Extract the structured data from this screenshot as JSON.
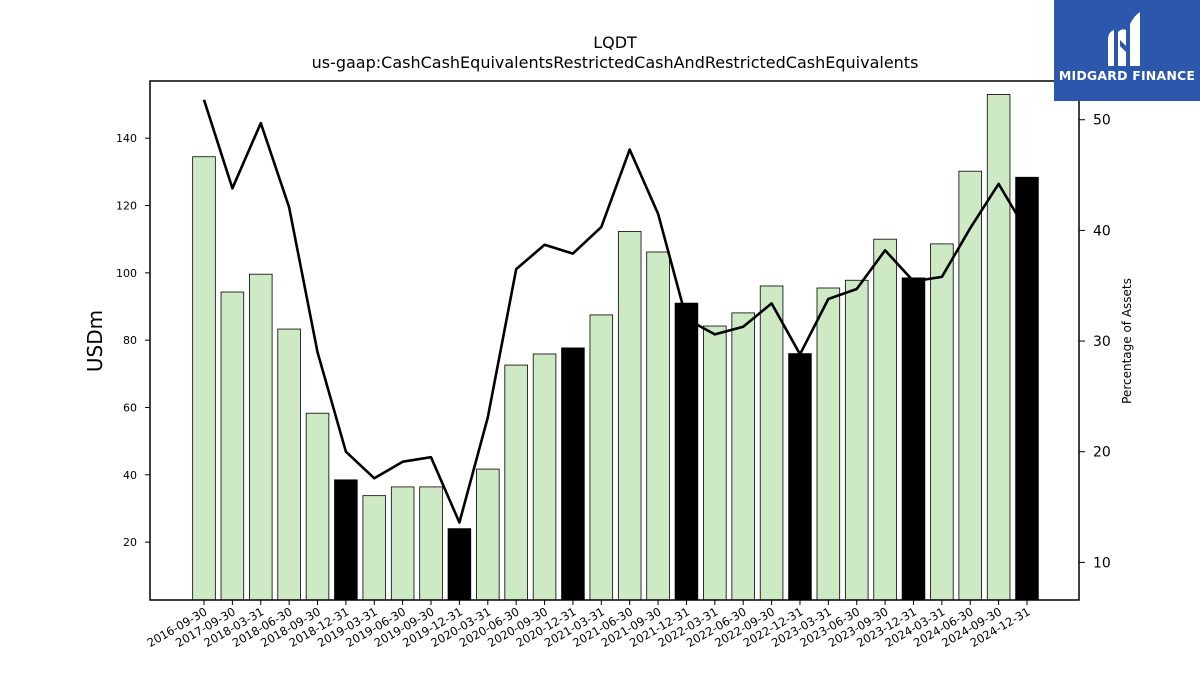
{
  "logo": {
    "text": "MIDGARD FINANCE"
  },
  "chart_data": {
    "type": "bar",
    "title": "LQDT",
    "subtitle": "us-gaap:CashCashEquivalentsRestrictedCashAndRestrictedCashEquivalents",
    "ylabel": "USDm",
    "y2label": "Percentage of Assets",
    "ylim": [
      2.8,
      157.0
    ],
    "y2lim": [
      6.6,
      53.5
    ],
    "yticks": [
      20,
      40,
      60,
      80,
      100,
      120,
      140
    ],
    "y2ticks": [
      10,
      20,
      30,
      40,
      50
    ],
    "grid": false,
    "colors": {
      "bar_light": "#cdeac5",
      "bar_dark": "#000000",
      "line": "#000000",
      "logo_bg": "#2b57ad"
    },
    "categories": [
      "2016-09-30",
      "2017-09-30",
      "2018-03-31",
      "2018-06-30",
      "2018-09-30",
      "2018-12-31",
      "2019-03-31",
      "2019-06-30",
      "2019-09-30",
      "2019-12-31",
      "2020-03-31",
      "2020-06-30",
      "2020-09-30",
      "2020-12-31",
      "2021-03-31",
      "2021-06-30",
      "2021-09-30",
      "2021-12-31",
      "2022-03-31",
      "2022-06-30",
      "2022-09-30",
      "2022-12-31",
      "2023-03-31",
      "2023-06-30",
      "2023-09-30",
      "2023-12-31",
      "2024-03-31",
      "2024-06-30",
      "2024-09-30",
      "2024-12-31"
    ],
    "series": [
      {
        "kind": "bar",
        "values": [
          134.5,
          94.3,
          99.6,
          83.3,
          58.3,
          38.5,
          33.8,
          36.4,
          36.4,
          24.0,
          41.7,
          72.6,
          75.9,
          77.7,
          87.5,
          112.3,
          106.2,
          91.0,
          84.2,
          88.1,
          96.1,
          76.0,
          95.5,
          97.8,
          110.0,
          98.5,
          108.6,
          130.2,
          153.0,
          128.4
        ],
        "highlight": [
          false,
          false,
          false,
          false,
          false,
          true,
          false,
          false,
          false,
          true,
          false,
          false,
          false,
          true,
          false,
          false,
          false,
          true,
          false,
          false,
          false,
          true,
          false,
          false,
          false,
          true,
          false,
          false,
          false,
          true
        ]
      },
      {
        "kind": "line",
        "axis": "right",
        "values": [
          51.8,
          43.8,
          49.7,
          42.1,
          29.0,
          20.0,
          17.6,
          19.1,
          19.5,
          13.6,
          23.1,
          36.5,
          38.7,
          37.9,
          40.3,
          47.3,
          41.5,
          32.0,
          30.6,
          31.3,
          33.4,
          28.8,
          33.8,
          34.7,
          38.2,
          35.4,
          35.8,
          40.2,
          44.2,
          39.9
        ]
      }
    ]
  }
}
